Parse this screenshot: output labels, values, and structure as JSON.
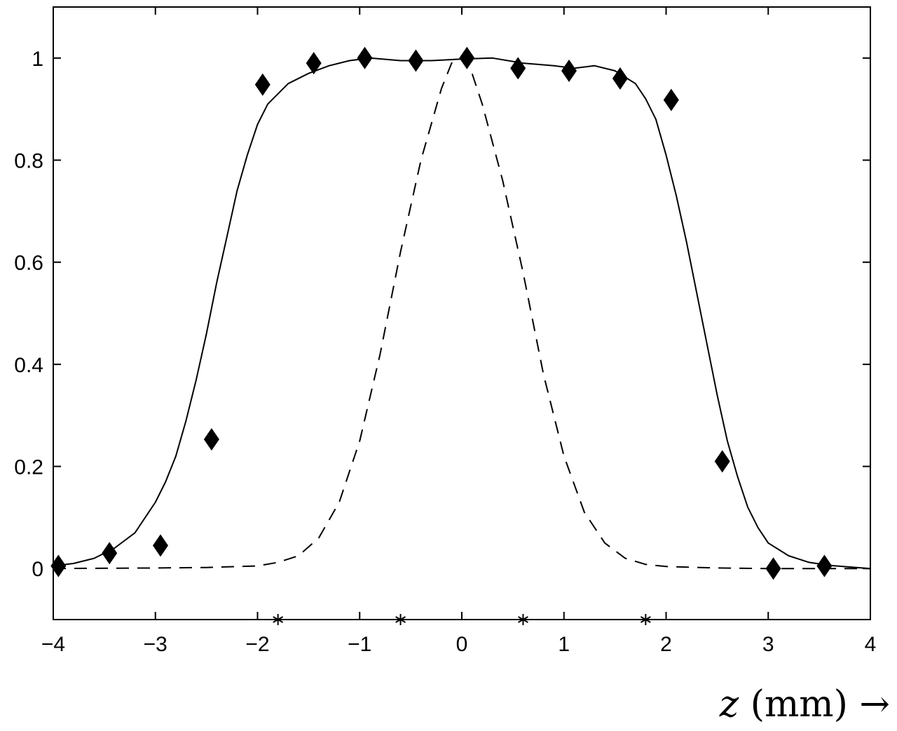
{
  "chart_data": {
    "type": "line",
    "title": "",
    "xlabel": "z (mm) →",
    "xlabel_parts": {
      "var": "z",
      "rest": " (mm) →"
    },
    "ylabel": "",
    "xlim": [
      -4,
      4
    ],
    "ylim": [
      -0.1,
      1.1
    ],
    "grid": false,
    "legend": "none",
    "x_ticks": [
      -4,
      -3,
      -2,
      -1,
      0,
      1,
      2,
      3,
      4
    ],
    "x_tick_labels": [
      "−4",
      "−3",
      "−2",
      "−1",
      "0",
      "1",
      "2",
      "3",
      "4"
    ],
    "y_ticks": [
      0,
      0.2,
      0.4,
      0.6,
      0.8,
      1
    ],
    "y_tick_labels": [
      "0",
      "0.2",
      "0.4",
      "0.6",
      "0.8",
      "1"
    ],
    "series": [
      {
        "style": "solid",
        "color": "#000000",
        "points": [
          [
            -4.0,
            0.005
          ],
          [
            -3.8,
            0.01
          ],
          [
            -3.6,
            0.02
          ],
          [
            -3.4,
            0.04
          ],
          [
            -3.2,
            0.07
          ],
          [
            -3.0,
            0.13
          ],
          [
            -2.9,
            0.17
          ],
          [
            -2.8,
            0.22
          ],
          [
            -2.7,
            0.29
          ],
          [
            -2.6,
            0.37
          ],
          [
            -2.5,
            0.46
          ],
          [
            -2.4,
            0.56
          ],
          [
            -2.3,
            0.65
          ],
          [
            -2.2,
            0.74
          ],
          [
            -2.1,
            0.81
          ],
          [
            -2.0,
            0.87
          ],
          [
            -1.9,
            0.91
          ],
          [
            -1.8,
            0.93
          ],
          [
            -1.7,
            0.95
          ],
          [
            -1.5,
            0.97
          ],
          [
            -1.3,
            0.985
          ],
          [
            -1.1,
            0.995
          ],
          [
            -0.9,
            1.0
          ],
          [
            -0.6,
            0.995
          ],
          [
            -0.3,
            0.995
          ],
          [
            0.0,
            0.998
          ],
          [
            0.3,
            1.0
          ],
          [
            0.6,
            0.99
          ],
          [
            0.9,
            0.985
          ],
          [
            1.1,
            0.98
          ],
          [
            1.3,
            0.985
          ],
          [
            1.5,
            0.975
          ],
          [
            1.7,
            0.95
          ],
          [
            1.8,
            0.92
          ],
          [
            1.9,
            0.88
          ],
          [
            2.0,
            0.81
          ],
          [
            2.1,
            0.73
          ],
          [
            2.2,
            0.64
          ],
          [
            2.3,
            0.54
          ],
          [
            2.4,
            0.44
          ],
          [
            2.5,
            0.34
          ],
          [
            2.6,
            0.25
          ],
          [
            2.7,
            0.18
          ],
          [
            2.8,
            0.12
          ],
          [
            2.9,
            0.08
          ],
          [
            3.0,
            0.05
          ],
          [
            3.2,
            0.025
          ],
          [
            3.4,
            0.012
          ],
          [
            3.6,
            0.006
          ],
          [
            3.8,
            0.003
          ],
          [
            4.0,
            0.0
          ]
        ]
      },
      {
        "style": "dashed",
        "color": "#000000",
        "points": [
          [
            -4.0,
            0.0
          ],
          [
            -3.0,
            0.001
          ],
          [
            -2.5,
            0.002
          ],
          [
            -2.0,
            0.005
          ],
          [
            -1.8,
            0.012
          ],
          [
            -1.6,
            0.025
          ],
          [
            -1.4,
            0.06
          ],
          [
            -1.2,
            0.13
          ],
          [
            -1.0,
            0.25
          ],
          [
            -0.8,
            0.42
          ],
          [
            -0.6,
            0.62
          ],
          [
            -0.4,
            0.8
          ],
          [
            -0.2,
            0.94
          ],
          [
            -0.1,
            0.99
          ],
          [
            0.0,
            1.0
          ],
          [
            0.1,
            0.97
          ],
          [
            0.2,
            0.91
          ],
          [
            0.4,
            0.76
          ],
          [
            0.6,
            0.58
          ],
          [
            0.8,
            0.38
          ],
          [
            1.0,
            0.22
          ],
          [
            1.2,
            0.11
          ],
          [
            1.4,
            0.05
          ],
          [
            1.6,
            0.02
          ],
          [
            1.8,
            0.008
          ],
          [
            2.0,
            0.004
          ],
          [
            2.5,
            0.001
          ],
          [
            3.0,
            0.0
          ],
          [
            4.0,
            0.0
          ]
        ]
      }
    ],
    "markers": {
      "shape": "diamond",
      "color": "#000000",
      "points": [
        [
          -3.95,
          0.005
        ],
        [
          -3.45,
          0.03
        ],
        [
          -2.95,
          0.045
        ],
        [
          -2.45,
          0.253
        ],
        [
          -1.95,
          0.948
        ],
        [
          -1.45,
          0.99
        ],
        [
          -0.95,
          1.0
        ],
        [
          -0.45,
          0.995
        ],
        [
          0.05,
          1.0
        ],
        [
          0.55,
          0.98
        ],
        [
          1.05,
          0.975
        ],
        [
          1.55,
          0.96
        ],
        [
          2.05,
          0.918
        ],
        [
          2.55,
          0.21
        ],
        [
          3.05,
          0.0
        ],
        [
          3.55,
          0.005
        ]
      ]
    },
    "axis_markers": {
      "shape": "asterisk",
      "y": -0.1,
      "x": [
        -1.8,
        -0.6,
        0.6,
        1.8
      ]
    }
  }
}
